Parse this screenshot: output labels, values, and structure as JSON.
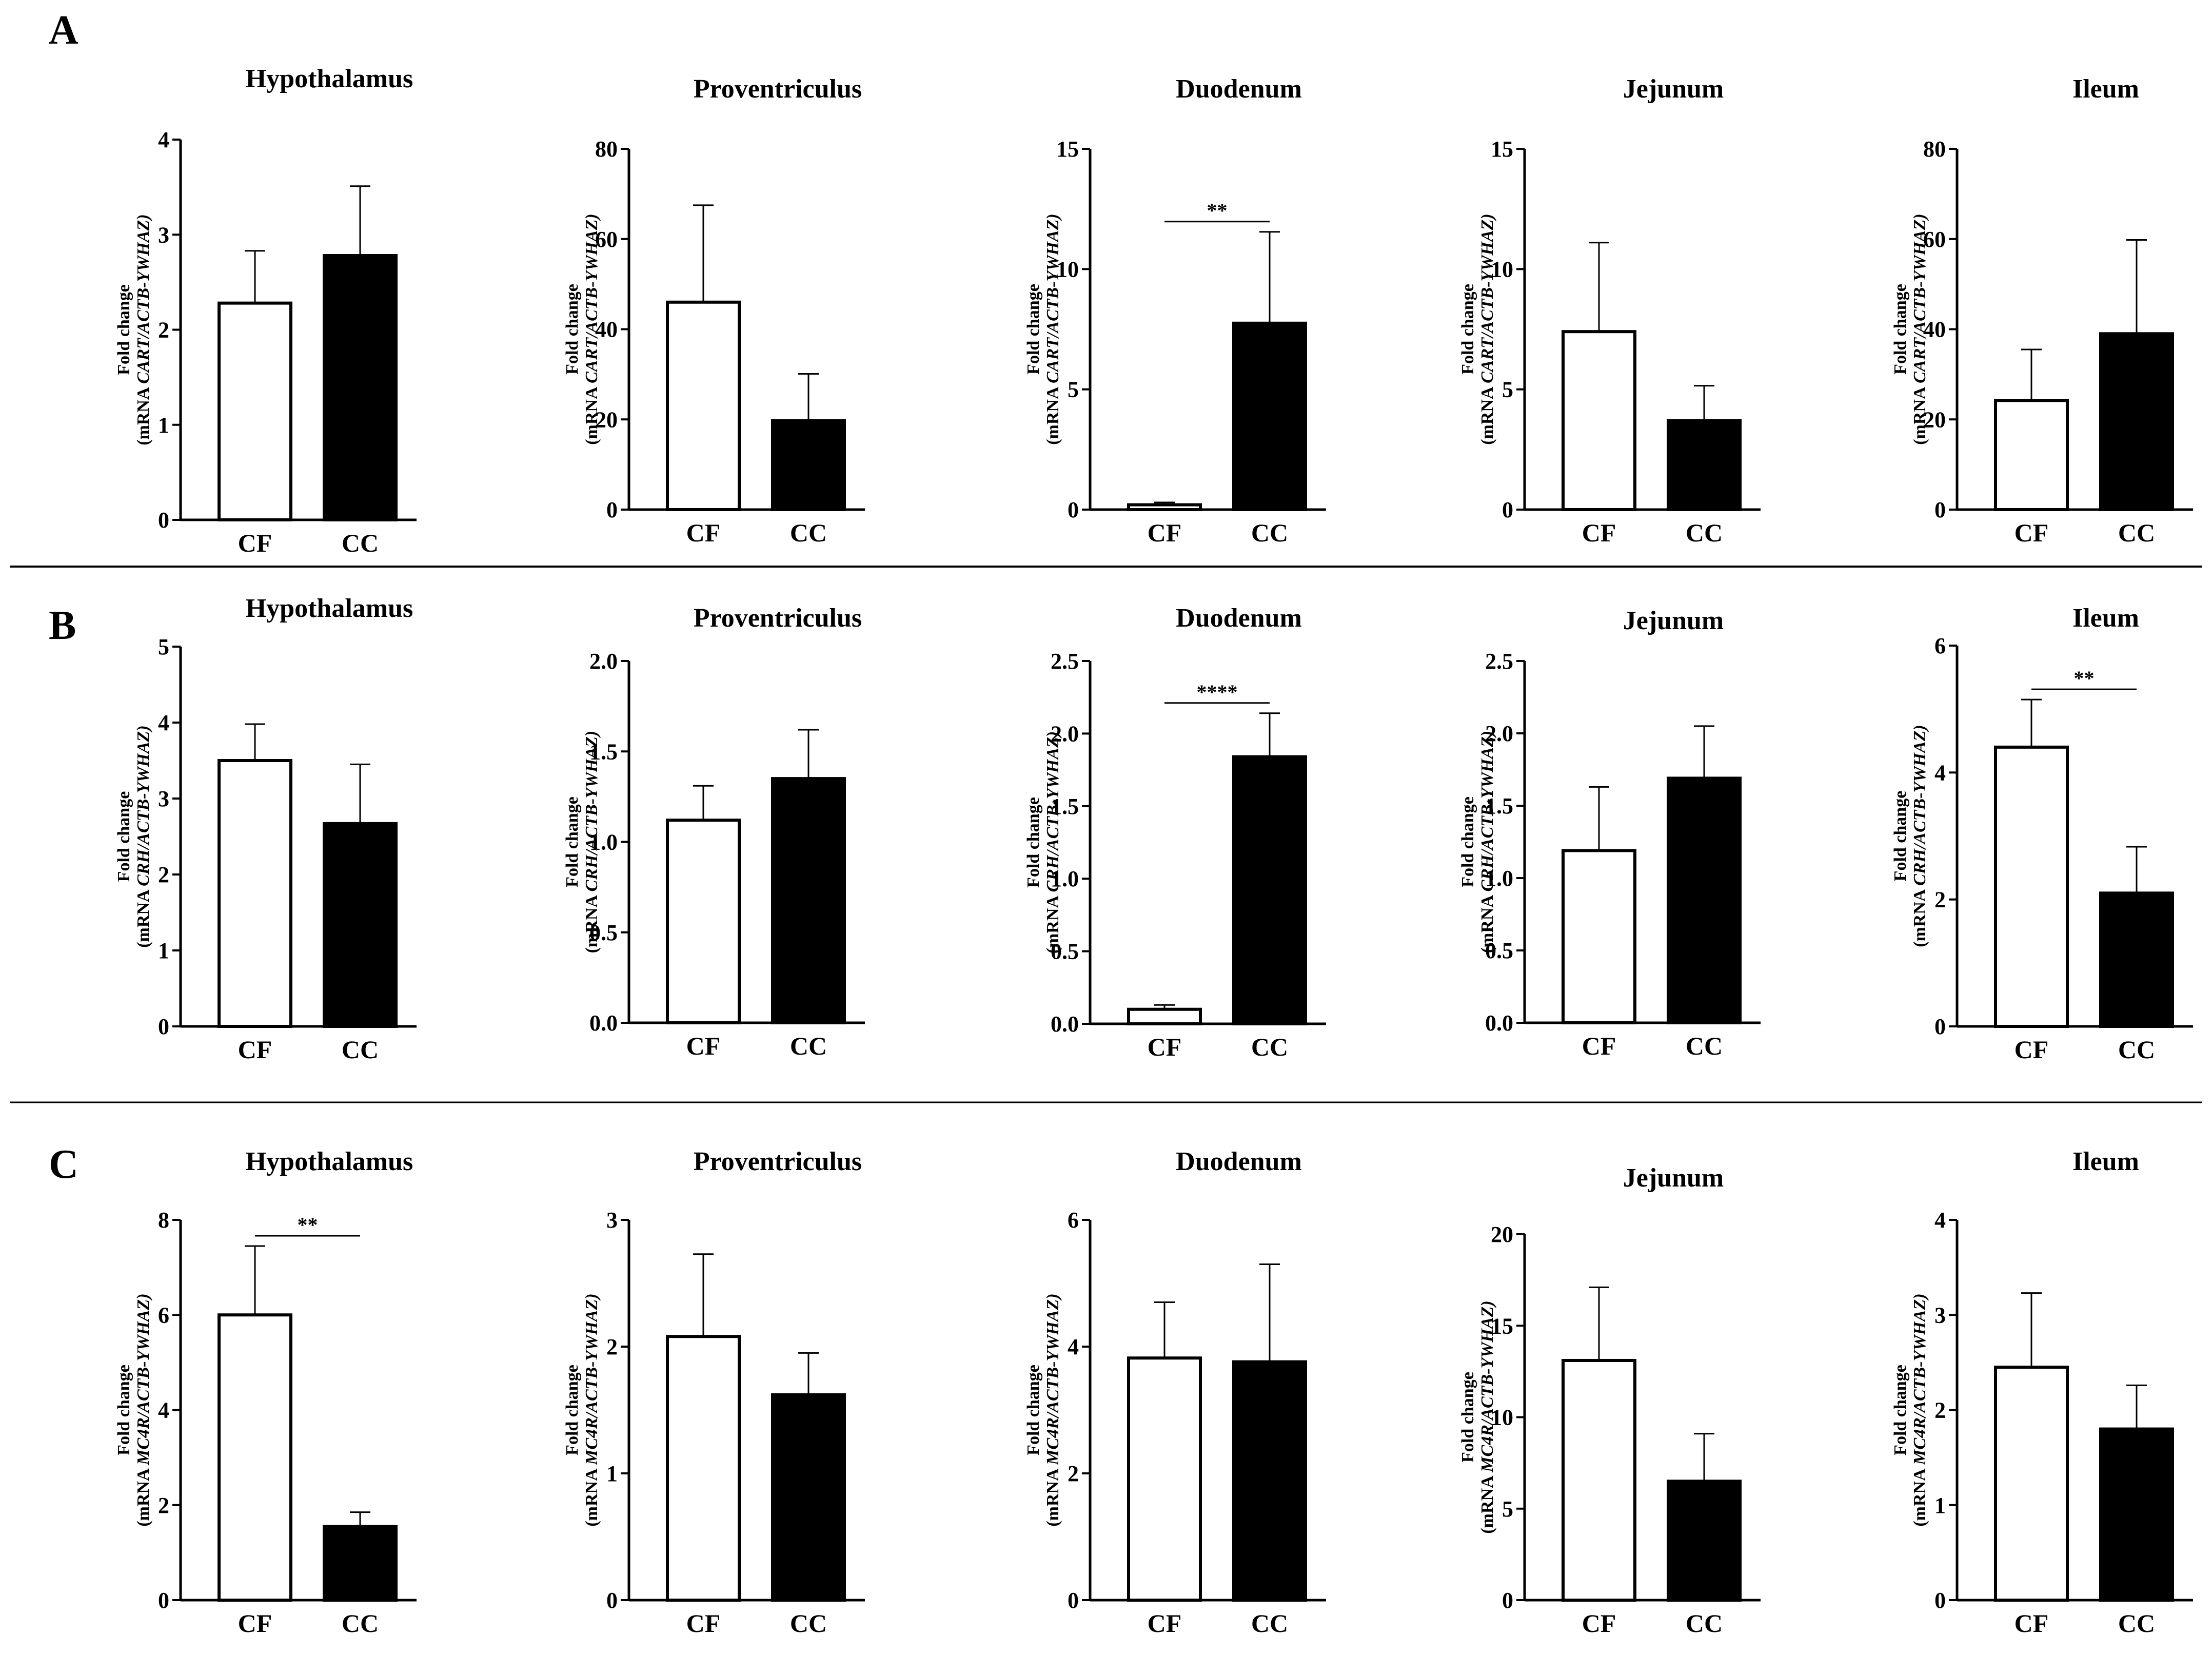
{
  "panels": [
    {
      "letter": "A",
      "gene": "CART"
    },
    {
      "letter": "B",
      "gene": "CRH"
    },
    {
      "letter": "C",
      "gene": "MC4R"
    }
  ],
  "ylabel_line1": "Fold change",
  "ylabel_prefix": "(mRNA ",
  "ylabel_suffix": "/ACTB-YWHAZ)",
  "chart_data": [
    {
      "type": "bar",
      "panel": "A",
      "title": "Hypothalamus",
      "categories": [
        "CF",
        "CC"
      ],
      "values": [
        2.28,
        2.78
      ],
      "errors": [
        0.55,
        0.73
      ],
      "ylim": [
        0,
        4
      ],
      "ticks": [
        "0",
        "1",
        "2",
        "3",
        "4"
      ],
      "significance": ""
    },
    {
      "type": "bar",
      "panel": "A",
      "title": "Proventriculus",
      "categories": [
        "CF",
        "CC"
      ],
      "values": [
        46.0,
        19.7
      ],
      "errors": [
        21.5,
        10.4
      ],
      "ylim": [
        0,
        80
      ],
      "ticks": [
        "0",
        "20",
        "40",
        "60",
        "80"
      ],
      "significance": ""
    },
    {
      "type": "bar",
      "panel": "A",
      "title": "Duodenum",
      "categories": [
        "CF",
        "CC"
      ],
      "values": [
        0.2,
        7.75
      ],
      "errors": [
        0.1,
        3.8
      ],
      "ylim": [
        0,
        15
      ],
      "ticks": [
        "0",
        "5",
        "10",
        "15"
      ],
      "significance": "**"
    },
    {
      "type": "bar",
      "panel": "A",
      "title": "Jejunum",
      "categories": [
        "CF",
        "CC"
      ],
      "values": [
        7.4,
        3.7
      ],
      "errors": [
        3.7,
        1.45
      ],
      "ylim": [
        0,
        15
      ],
      "ticks": [
        "0",
        "5",
        "10",
        "15"
      ],
      "significance": ""
    },
    {
      "type": "bar",
      "panel": "A",
      "title": "Ileum",
      "categories": [
        "CF",
        "CC"
      ],
      "values": [
        24.2,
        39.0
      ],
      "errors": [
        11.3,
        20.8
      ],
      "ylim": [
        0,
        80
      ],
      "ticks": [
        "0",
        "20",
        "40",
        "60",
        "80"
      ],
      "significance": ""
    },
    {
      "type": "bar",
      "panel": "B",
      "title": "Hypothalamus",
      "categories": [
        "CF",
        "CC"
      ],
      "values": [
        3.5,
        2.67
      ],
      "errors": [
        0.48,
        0.78
      ],
      "ylim": [
        0,
        5
      ],
      "ticks": [
        "0",
        "1",
        "2",
        "3",
        "4",
        "5"
      ],
      "significance": ""
    },
    {
      "type": "bar",
      "panel": "B",
      "title": "Proventriculus",
      "categories": [
        "CF",
        "CC"
      ],
      "values": [
        1.12,
        1.35
      ],
      "errors": [
        0.19,
        0.27
      ],
      "ylim": [
        0,
        2.0
      ],
      "ticks": [
        "0.0",
        "0.5",
        "1.0",
        "1.5",
        "2.0"
      ],
      "significance": ""
    },
    {
      "type": "bar",
      "panel": "B",
      "title": "Duodenum",
      "categories": [
        "CF",
        "CC"
      ],
      "values": [
        0.1,
        1.84
      ],
      "errors": [
        0.03,
        0.3
      ],
      "ylim": [
        0,
        2.5
      ],
      "ticks": [
        "0.0",
        "0.5",
        "1.0",
        "1.5",
        "2.0",
        "2.5"
      ],
      "significance": "****"
    },
    {
      "type": "bar",
      "panel": "B",
      "title": "Jejunum",
      "categories": [
        "CF",
        "CC"
      ],
      "values": [
        1.19,
        1.69
      ],
      "errors": [
        0.44,
        0.36
      ],
      "ylim": [
        0,
        2.5
      ],
      "ticks": [
        "0.0",
        "0.5",
        "1.0",
        "1.5",
        "2.0",
        "2.5"
      ],
      "significance": ""
    },
    {
      "type": "bar",
      "panel": "B",
      "title": "Ileum",
      "categories": [
        "CF",
        "CC"
      ],
      "values": [
        4.4,
        2.1
      ],
      "errors": [
        0.75,
        0.73
      ],
      "ylim": [
        0,
        6
      ],
      "ticks": [
        "0",
        "2",
        "4",
        "6"
      ],
      "significance": "**"
    },
    {
      "type": "bar",
      "panel": "C",
      "title": "Hypothalamus",
      "categories": [
        "CF",
        "CC"
      ],
      "values": [
        6.0,
        1.55
      ],
      "errors": [
        1.45,
        0.3
      ],
      "ylim": [
        0,
        8
      ],
      "ticks": [
        "0",
        "2",
        "4",
        "6",
        "8"
      ],
      "significance": "**"
    },
    {
      "type": "bar",
      "panel": "C",
      "title": "Proventriculus",
      "categories": [
        "CF",
        "CC"
      ],
      "values": [
        2.08,
        1.62
      ],
      "errors": [
        0.65,
        0.33
      ],
      "ylim": [
        0,
        3
      ],
      "ticks": [
        "0",
        "1",
        "2",
        "3"
      ],
      "significance": ""
    },
    {
      "type": "bar",
      "panel": "C",
      "title": "Duodenum",
      "categories": [
        "CF",
        "CC"
      ],
      "values": [
        3.82,
        3.76
      ],
      "errors": [
        0.88,
        1.54
      ],
      "ylim": [
        0,
        6
      ],
      "ticks": [
        "0",
        "2",
        "4",
        "6"
      ],
      "significance": ""
    },
    {
      "type": "bar",
      "panel": "C",
      "title": "Jejunum",
      "categories": [
        "CF",
        "CC"
      ],
      "values": [
        13.1,
        6.5
      ],
      "errors": [
        4.0,
        2.6
      ],
      "ylim": [
        0,
        20
      ],
      "ticks": [
        "0",
        "5",
        "10",
        "15",
        "20"
      ],
      "significance": ""
    },
    {
      "type": "bar",
      "panel": "C",
      "title": "Ileum",
      "categories": [
        "CF",
        "CC"
      ],
      "values": [
        2.45,
        1.8
      ],
      "errors": [
        0.78,
        0.46
      ],
      "ylim": [
        0,
        4
      ],
      "ticks": [
        "0",
        "1",
        "2",
        "3",
        "4"
      ],
      "significance": ""
    }
  ]
}
